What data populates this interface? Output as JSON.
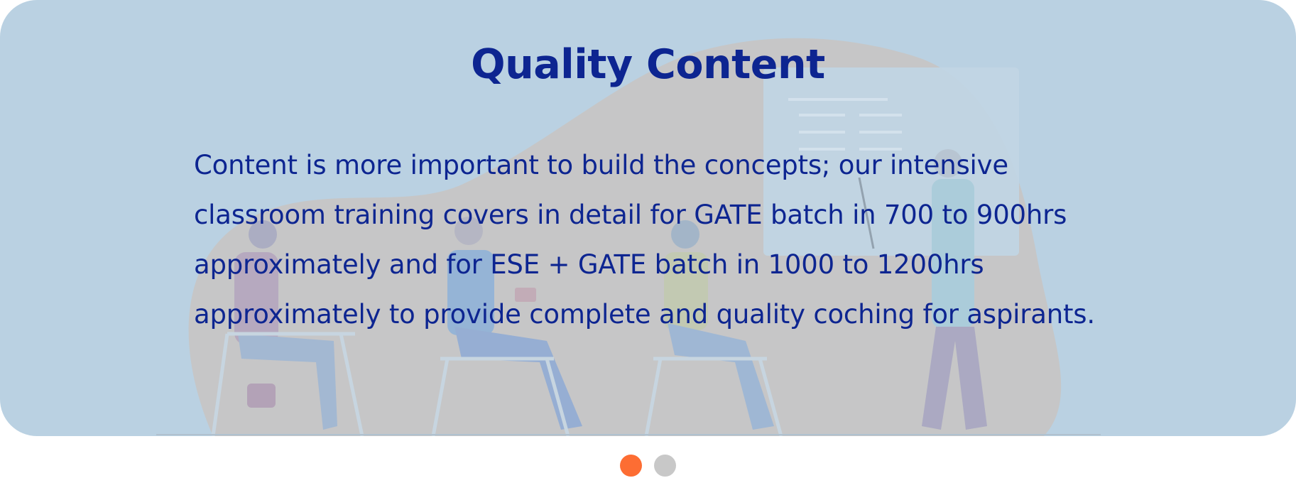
{
  "slide": {
    "title": "Quality Content",
    "body": "Content is more important to build the concepts; our intensive classroom training covers in detail for GATE batch in 700 to 900hrs approximately and for ESE + GATE batch in 1000 to 1200hrs approximately to provide complete and quality coching for aspirants.",
    "background_color": "#bad2e2",
    "text_color": "#0d2591"
  },
  "pagination": {
    "count": 2,
    "active_index": 0,
    "active_color": "#fd6d33",
    "inactive_color": "#c8c8c8"
  }
}
